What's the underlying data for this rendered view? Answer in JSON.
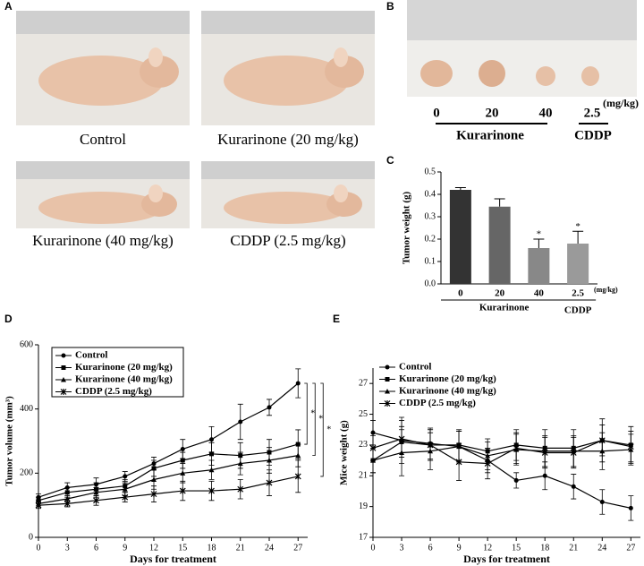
{
  "panels": {
    "labels": [
      "A",
      "B",
      "C",
      "D",
      "E"
    ],
    "photo_captions": [
      "Control",
      "Kurarinone (20 mg/kg)",
      "Kurarinone (40 mg/kg)",
      "CDDP (2.5 mg/kg)"
    ]
  },
  "panel_b": {
    "doses": [
      "0",
      "20",
      "40",
      "2.5"
    ],
    "unit": "(mg/kg)",
    "groups": [
      "Kurarinone",
      "CDDP"
    ]
  },
  "chart_data": [
    {
      "type": "bar",
      "y_label": "Tumor weight (g)",
      "categories": [
        "0",
        "20",
        "40",
        "2.5"
      ],
      "values": [
        0.42,
        0.345,
        0.16,
        0.18
      ],
      "errors": [
        0.01,
        0.035,
        0.04,
        0.055
      ],
      "colors": [
        "#333333",
        "#666666",
        "#888888",
        "#9a9a9a"
      ],
      "significance": [
        null,
        null,
        "*",
        "*"
      ],
      "unit": "(mg/kg)",
      "groups": [
        "Kurarinone",
        "CDDP"
      ],
      "ylim": [
        0,
        0.5
      ],
      "yticks": [
        {
          "value": 0,
          "label": "0.0"
        },
        0.1,
        0.2,
        0.3,
        0.4,
        0.5
      ]
    },
    {
      "type": "line",
      "x_label": "Days for treatment",
      "y_label": "Tumor volume (mm³)",
      "x": [
        0,
        3,
        6,
        9,
        12,
        15,
        18,
        21,
        24,
        27
      ],
      "xlim": [
        0,
        28
      ],
      "xticks": [
        0,
        3,
        6,
        9,
        12,
        15,
        18,
        21,
        24,
        27
      ],
      "ylim": [
        0,
        600
      ],
      "yticks": [
        0,
        200,
        400,
        600
      ],
      "legend": "upper left",
      "legend_box": true,
      "significance": [
        "*",
        "*",
        "*"
      ],
      "series": [
        {
          "name": "Control",
          "color": "#000000",
          "marker": "circle",
          "values": [
            125,
            155,
            165,
            190,
            230,
            275,
            305,
            360,
            405,
            480
          ],
          "errors": [
            10,
            15,
            20,
            15,
            20,
            30,
            40,
            55,
            25,
            45
          ]
        },
        {
          "name": "Kurarinone (20 mg/kg)",
          "color": "#000000",
          "marker": "square",
          "values": [
            115,
            140,
            150,
            160,
            215,
            240,
            260,
            255,
            265,
            290
          ],
          "errors": [
            10,
            15,
            20,
            20,
            25,
            25,
            35,
            40,
            40,
            45
          ]
        },
        {
          "name": "Kurarinone (40 mg/kg)",
          "color": "#000000",
          "marker": "triangle",
          "values": [
            105,
            120,
            140,
            150,
            180,
            200,
            210,
            230,
            240,
            255
          ],
          "errors": [
            10,
            10,
            15,
            20,
            30,
            30,
            30,
            35,
            40,
            35
          ]
        },
        {
          "name": "CDDP (2.5 mg/kg)",
          "color": "#000000",
          "marker": "cross",
          "values": [
            100,
            105,
            115,
            125,
            135,
            145,
            145,
            150,
            170,
            190
          ],
          "errors": [
            10,
            10,
            15,
            15,
            25,
            30,
            30,
            30,
            40,
            50
          ]
        }
      ]
    },
    {
      "type": "line",
      "x_label": "Days for treatment",
      "y_label": "Mice weight (g)",
      "x": [
        0,
        3,
        6,
        9,
        12,
        15,
        18,
        21,
        24,
        27
      ],
      "xlim": [
        0,
        28
      ],
      "xticks": [
        0,
        3,
        6,
        9,
        12,
        15,
        18,
        21,
        24,
        27
      ],
      "ylim": [
        17,
        28
      ],
      "yticks": [
        17,
        19,
        21,
        23,
        25,
        27
      ],
      "legend": "upper left",
      "legend_box": false,
      "series": [
        {
          "name": "Control",
          "color": "#000000",
          "marker": "circle",
          "values": [
            23.8,
            23.3,
            23.1,
            22.9,
            22.0,
            20.7,
            21.0,
            20.3,
            19.3,
            18.9
          ],
          "errors": [
            0.8,
            1.5,
            1.0,
            1.0,
            0.8,
            0.5,
            0.9,
            0.8,
            0.8,
            0.8
          ]
        },
        {
          "name": "Kurarinone (20 mg/kg)",
          "color": "#000000",
          "marker": "square",
          "values": [
            22.0,
            23.2,
            23.0,
            23.0,
            22.6,
            23.0,
            22.8,
            22.8,
            23.3,
            23.0
          ],
          "errors": [
            0.8,
            1.0,
            1.0,
            1.0,
            0.8,
            1.0,
            1.2,
            1.2,
            1.4,
            1.2
          ]
        },
        {
          "name": "Kurarinone (40 mg/kg)",
          "color": "#000000",
          "marker": "triangle",
          "values": [
            22.0,
            22.5,
            22.6,
            22.9,
            22.3,
            22.7,
            22.6,
            22.6,
            22.6,
            22.7
          ],
          "errors": [
            0.8,
            1.5,
            1.2,
            1.0,
            0.9,
            1.0,
            1.0,
            1.0,
            1.2,
            1.0
          ]
        },
        {
          "name": "CDDP (2.5 mg/kg)",
          "color": "#000000",
          "marker": "cross",
          "values": [
            22.8,
            23.4,
            23.0,
            21.9,
            21.8,
            22.8,
            22.5,
            22.5,
            23.3,
            22.9
          ],
          "errors": [
            0.8,
            1.2,
            1.0,
            1.2,
            1.0,
            1.0,
            1.0,
            1.0,
            1.0,
            1.0
          ]
        }
      ]
    }
  ]
}
